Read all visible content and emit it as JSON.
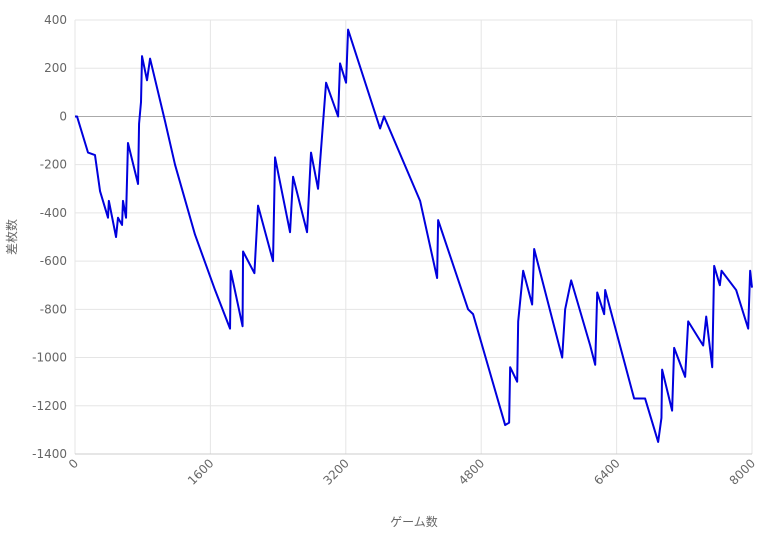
{
  "chart_data": {
    "type": "line",
    "x_label": "ゲーム数",
    "y_label": "差枚数",
    "x": [
      0,
      24,
      154,
      236,
      296,
      390,
      400,
      485,
      508,
      556,
      567,
      603,
      626,
      745,
      757,
      780,
      792,
      851,
      887,
      1064,
      1182,
      1418,
      1655,
      1832,
      1840,
      1980,
      1986,
      2120,
      2163,
      2340,
      2364,
      2541,
      2577,
      2742,
      2789,
      2872,
      2967,
      3109,
      3132,
      3203,
      3227,
      3605,
      3652,
      4078,
      4279,
      4291,
      4645,
      4704,
      5083,
      5130,
      5142,
      5225,
      5237,
      5296,
      5402,
      5426,
      5757,
      5792,
      5863,
      6088,
      6147,
      6171,
      6253,
      6265,
      6607,
      6737,
      6891,
      6930,
      6938,
      7056,
      7080,
      7210,
      7246,
      7423,
      7459,
      7530,
      7553,
      7620,
      7640,
      7813,
      7955,
      7978,
      8000
    ],
    "series": [
      {
        "name": "差枚数",
        "color": "#0000dd",
        "values": [
          0,
          0,
          -150,
          -160,
          -310,
          -420,
          -350,
          -500,
          -420,
          -450,
          -350,
          -420,
          -110,
          -280,
          -30,
          60,
          250,
          150,
          240,
          -20,
          -200,
          -490,
          -720,
          -880,
          -640,
          -870,
          -560,
          -650,
          -370,
          -600,
          -170,
          -480,
          -250,
          -480,
          -150,
          -300,
          140,
          0,
          220,
          140,
          360,
          -50,
          0,
          -350,
          -670,
          -430,
          -800,
          -820,
          -1280,
          -1270,
          -1040,
          -1100,
          -850,
          -640,
          -780,
          -550,
          -1000,
          -800,
          -680,
          -950,
          -1030,
          -730,
          -820,
          -720,
          -1170,
          -1170,
          -1350,
          -1250,
          -1050,
          -1220,
          -960,
          -1080,
          -850,
          -950,
          -830,
          -1040,
          -620,
          -700,
          -640,
          -720,
          -880,
          -640,
          -710
        ]
      }
    ],
    "xlim": [
      0,
      8000
    ],
    "xticks": [
      0,
      1600,
      3200,
      4800,
      6400,
      8000
    ],
    "ylim": [
      -1400,
      400
    ],
    "yticks": [
      -1400,
      -1200,
      -1000,
      -800,
      -600,
      -400,
      -200,
      0,
      200,
      400
    ],
    "grid": true
  }
}
